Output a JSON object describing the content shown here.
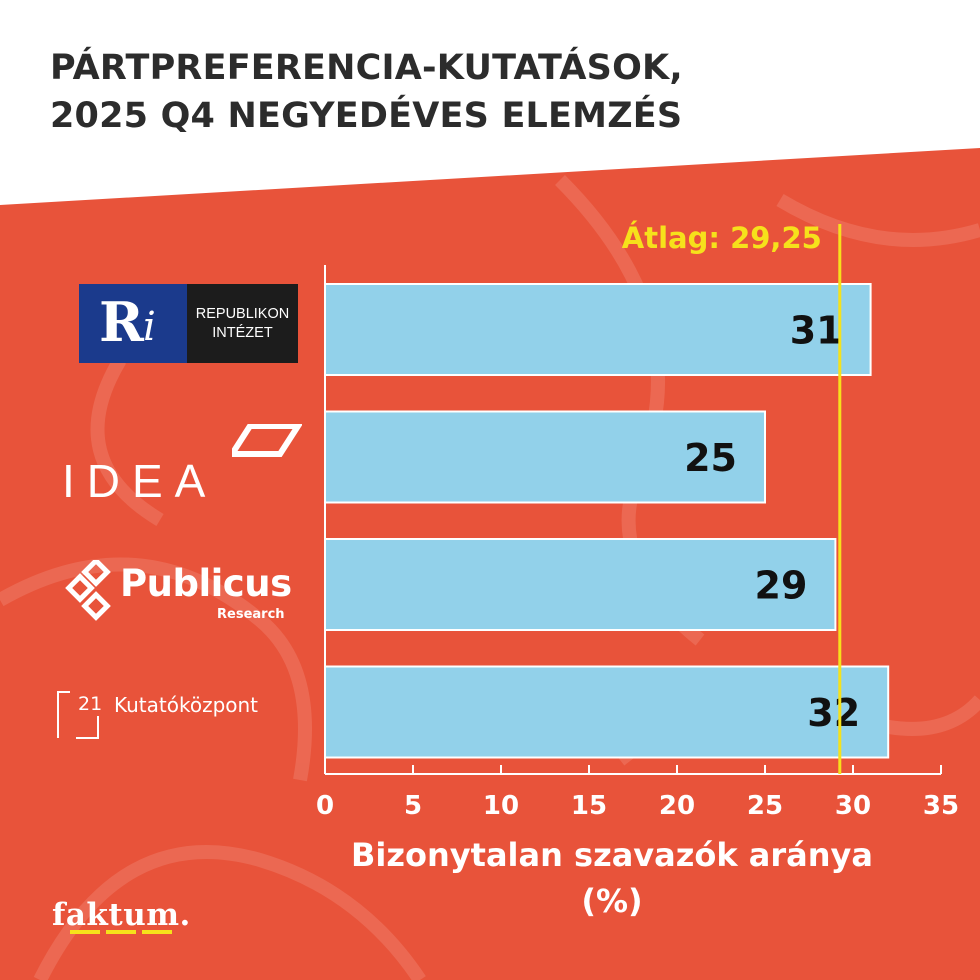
{
  "header": {
    "title_line1": "PÁRTPREFERENCIA-KUTATÁSOK,",
    "title_line2": "2025 Q4 NEGYEDÉVES ELEMZÉS"
  },
  "logos": {
    "republikon": {
      "mark_r": "R",
      "mark_i": "i",
      "line1": "REPUBLIKON",
      "line2": "INTÉZET"
    },
    "idea": {
      "word": "IDEA"
    },
    "publicus": {
      "word": "Publicus",
      "sub": "Research"
    },
    "kutato21": {
      "num": "21",
      "word": "Kutatóközpont"
    }
  },
  "brand": {
    "name": "faktum."
  },
  "colors": {
    "background": "#e8533a",
    "header_bg": "#ffffff",
    "bar_fill": "#92d1ea",
    "average_line": "#f6e11b",
    "average_text": "#f6e11b",
    "text_dark": "#111111",
    "text_light": "#ffffff"
  },
  "chart_data": {
    "type": "bar",
    "orientation": "horizontal",
    "categories": [
      "Republikon Intézet",
      "IDEA",
      "Publicus Research",
      "21 Kutatóközpont"
    ],
    "values": [
      31,
      25,
      29,
      32
    ],
    "xlabel_line1": "Bizonytalan szavazók aránya",
    "xlabel_line2": "(%)",
    "xlim": [
      0,
      35
    ],
    "xticks": [
      0,
      5,
      10,
      15,
      20,
      25,
      30,
      35
    ],
    "average_value": 29.25,
    "average_label": "Átlag: 29,25",
    "data_labels": true,
    "grid": false
  }
}
